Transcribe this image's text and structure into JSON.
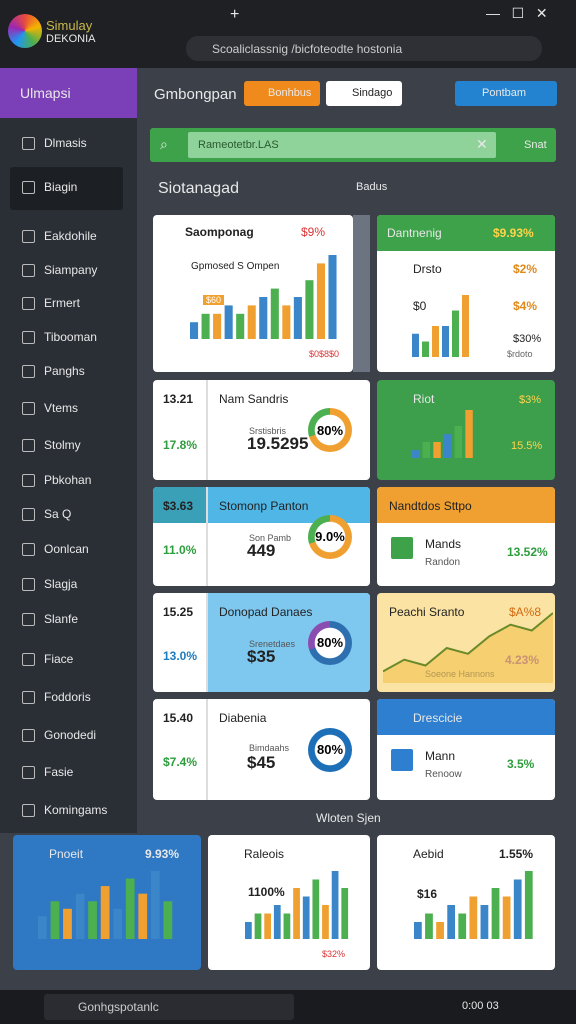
{
  "browser": {
    "logo": [
      "Simulay",
      "DEKONIA"
    ],
    "address": "Scoaliclassnig /bicfoteodte hostonia"
  },
  "sidebar": {
    "header": "Ulmapsi",
    "items": [
      "Dlmasis",
      "Biagin",
      "Eakdohile",
      "Siampany",
      "Ermert",
      "Tibooman",
      "Panghs",
      "Vtems",
      "Stolmy",
      "Pbkohan",
      "Sa Q",
      "Oonlcan",
      "Slagja",
      "Slanfe",
      "Fiace",
      "Foddoris",
      "Gonodedi",
      "Fasie",
      "Komingams"
    ]
  },
  "topbar": {
    "title": "Gmbongpan",
    "buttons": [
      "Bonhbus",
      "Sindago",
      "Pontbam"
    ]
  },
  "search": {
    "placeholder": "Rameotetbr.LAS",
    "action": "Snat"
  },
  "section": {
    "title": "Siotanagad",
    "tag": "Badus",
    "footer_title": "Wloten Sjen"
  },
  "cards": [
    {
      "title": "Saomponag",
      "value": "$9%",
      "subtitle": "Gpmosed S Ompen",
      "tag": "$60",
      "footer": "$0$8$0",
      "bars": [
        2,
        3,
        3,
        4,
        3,
        4,
        5,
        6,
        4,
        5,
        7,
        9,
        10
      ]
    },
    {
      "title": "Dantnenig",
      "value": "$9.93%",
      "rows": [
        [
          "Drsto",
          "$2%"
        ],
        [
          "$0",
          "$4%"
        ]
      ],
      "note": "$30%",
      "footer": "$rdoto",
      "bars": [
        3,
        2,
        4,
        4,
        6,
        8
      ]
    },
    {
      "label": "13.21",
      "change": "17.8%",
      "title": "Nam Sandris",
      "subtitle": "Srstisbris",
      "value": "19.5295",
      "donut": "80%"
    },
    {
      "title": "Riot",
      "value": "$3%",
      "change": "15.5%",
      "bars": [
        1,
        2,
        2,
        3,
        4,
        6
      ]
    },
    {
      "label": "$3.63",
      "change": "11.0%",
      "title": "Stomonp Panton",
      "subtitle": "Son Pamb",
      "value": "449",
      "donut": "9.0%"
    },
    {
      "title": "Nandtdos Sttpo",
      "name": "Mands",
      "subtitle": "Randon",
      "change": "13.52%"
    },
    {
      "label": "15.25",
      "change": "13.0%",
      "title": "Donopad Danaes",
      "subtitle": "Srenetdaes",
      "value": "$35",
      "donut": "80%"
    },
    {
      "title": "Peachi Sranto",
      "value": "$A%8",
      "subtitle": "Soeone Hannons",
      "change": "4.23%",
      "line": [
        1,
        2,
        1.5,
        3,
        2.5,
        4,
        5,
        4.5,
        6
      ]
    },
    {
      "label": "15.40",
      "change": "$7.4%",
      "title": "Diabenia",
      "subtitle": "Bimdaahs",
      "value": "$45",
      "donut": "80%"
    },
    {
      "title": "Drescicie",
      "name": "Mann",
      "subtitle": "Renoow",
      "change": "3.5%"
    },
    {
      "title": "Pnoeit",
      "value": "9.93%",
      "bars": [
        3,
        5,
        4,
        6,
        5,
        7,
        4,
        8,
        6,
        9,
        5
      ]
    },
    {
      "title": "Raleois",
      "value": "1100%",
      "footer": "$32%",
      "bars": [
        2,
        3,
        3,
        4,
        3,
        6,
        5,
        7,
        4,
        8,
        6
      ]
    },
    {
      "title": "Aebid",
      "value": "1.55%",
      "subtitle": "$16",
      "bars": [
        2,
        3,
        2,
        4,
        3,
        5,
        4,
        6,
        5,
        7,
        8
      ]
    }
  ],
  "taskbar": {
    "search": "Gonhgspotanlc",
    "time": "0:00 03"
  }
}
